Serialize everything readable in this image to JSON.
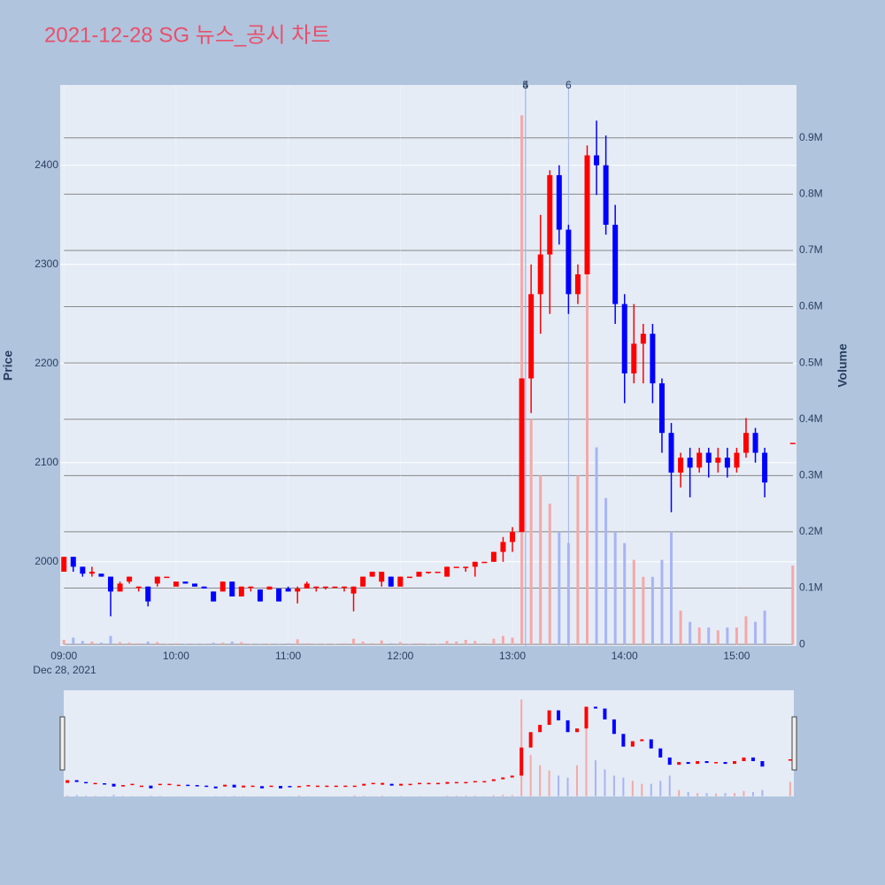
{
  "chart_data": {
    "type": "candlestick",
    "title": "2021-12-28 SG 뉴스_공시 차트",
    "ylabel": "Price",
    "y2label": "Volume",
    "date_label": "Dec 28, 2021",
    "increasing_color": "#ff0000",
    "decreasing_color": "#0000ff",
    "volume_increasing_color": "#f4a8a8",
    "volume_decreasing_color": "#a8b4f4",
    "xlim": [
      "08:58",
      "15:32"
    ],
    "xticks": [
      "09:00",
      "10:00",
      "11:00",
      "12:00",
      "13:00",
      "14:00",
      "15:00"
    ],
    "ylim": [
      1915,
      2481
    ],
    "yticks": [
      2000,
      2100,
      2200,
      2300,
      2400
    ],
    "y2lim": [
      -3000,
      994000
    ],
    "y2ticks": [
      0,
      {
        "value": 100000,
        "label": "0.1M"
      },
      {
        "value": 200000,
        "label": "0.2M"
      },
      {
        "value": 300000,
        "label": "0.3M"
      },
      {
        "value": 400000,
        "label": "0.4M"
      },
      {
        "value": 500000,
        "label": "0.5M"
      },
      {
        "value": 600000,
        "label": "0.6M"
      },
      {
        "value": 700000,
        "label": "0.7M"
      },
      {
        "value": 800000,
        "label": "0.8M"
      },
      {
        "value": 900000,
        "label": "0.9M"
      }
    ],
    "annotations": [
      {
        "x": "13:07",
        "label": "4"
      },
      {
        "x": "13:07",
        "label": "5"
      },
      {
        "x": "13:30",
        "label": "6"
      }
    ],
    "x": [
      "09:00",
      "09:05",
      "09:10",
      "09:15",
      "09:20",
      "09:25",
      "09:30",
      "09:35",
      "09:40",
      "09:45",
      "09:50",
      "09:55",
      "10:00",
      "10:05",
      "10:10",
      "10:15",
      "10:20",
      "10:25",
      "10:30",
      "10:35",
      "10:40",
      "10:45",
      "10:50",
      "10:55",
      "11:00",
      "11:05",
      "11:10",
      "11:15",
      "11:20",
      "11:25",
      "11:30",
      "11:35",
      "11:40",
      "11:45",
      "11:50",
      "11:55",
      "12:00",
      "12:05",
      "12:10",
      "12:15",
      "12:20",
      "12:25",
      "12:30",
      "12:35",
      "12:40",
      "12:45",
      "12:50",
      "12:55",
      "13:00",
      "13:05",
      "13:10",
      "13:15",
      "13:20",
      "13:25",
      "13:30",
      "13:35",
      "13:40",
      "13:45",
      "13:50",
      "13:55",
      "14:00",
      "14:05",
      "14:10",
      "14:15",
      "14:20",
      "14:25",
      "14:30",
      "14:35",
      "14:40",
      "14:45",
      "14:50",
      "14:55",
      "15:00",
      "15:05",
      "15:10",
      "15:15",
      "15:30"
    ],
    "open": [
      1990,
      2005,
      1995,
      1988,
      1988,
      1985,
      1970,
      1980,
      1975,
      1975,
      1978,
      1985,
      1975,
      1980,
      1978,
      1975,
      1970,
      1970,
      1980,
      1965,
      1975,
      1972,
      1972,
      1973,
      1973,
      1970,
      1973,
      1975,
      1975,
      1975,
      1975,
      1968,
      1975,
      1985,
      1980,
      1985,
      1975,
      1985,
      1985,
      1990,
      1990,
      1985,
      1995,
      1995,
      1995,
      2000,
      2000,
      2010,
      2020,
      2030,
      2185,
      2270,
      2310,
      2390,
      2335,
      2270,
      2290,
      2410,
      2400,
      2340,
      2260,
      2190,
      2220,
      2230,
      2180,
      2130,
      2090,
      2105,
      2095,
      2110,
      2100,
      2105,
      2095,
      2110,
      2130,
      2110,
      2120
    ],
    "high": [
      2005,
      2005,
      1995,
      1995,
      1988,
      1985,
      1980,
      1985,
      1975,
      1975,
      1985,
      1985,
      1980,
      1980,
      1978,
      1975,
      1970,
      1980,
      1980,
      1975,
      1975,
      1972,
      1975,
      1973,
      1975,
      1975,
      1980,
      1975,
      1975,
      1975,
      1975,
      1975,
      1985,
      1990,
      1990,
      1985,
      1985,
      1985,
      1990,
      1990,
      1990,
      1995,
      1995,
      1995,
      2000,
      2000,
      2010,
      2025,
      2035,
      2185,
      2300,
      2350,
      2395,
      2400,
      2340,
      2300,
      2420,
      2445,
      2430,
      2360,
      2270,
      2260,
      2240,
      2240,
      2185,
      2140,
      2110,
      2115,
      2115,
      2115,
      2115,
      2115,
      2115,
      2145,
      2135,
      2115,
      2120
    ],
    "low": [
      1990,
      1990,
      1985,
      1985,
      1985,
      1945,
      1970,
      1978,
      1970,
      1955,
      1975,
      1985,
      1975,
      1978,
      1975,
      1973,
      1960,
      1970,
      1965,
      1965,
      1970,
      1960,
      1972,
      1960,
      1970,
      1958,
      1973,
      1970,
      1972,
      1975,
      1970,
      1950,
      1975,
      1985,
      1975,
      1975,
      1975,
      1985,
      1985,
      1988,
      1990,
      1985,
      1995,
      1990,
      1985,
      2000,
      2000,
      2000,
      2010,
      2030,
      2150,
      2230,
      2250,
      2320,
      2250,
      2260,
      2290,
      2370,
      2330,
      2240,
      2160,
      2180,
      2180,
      2160,
      2110,
      2050,
      2075,
      2065,
      2090,
      2085,
      2090,
      2085,
      2090,
      2105,
      2100,
      2065,
      2120
    ],
    "close": [
      2005,
      1995,
      1988,
      1990,
      1985,
      1970,
      1978,
      1985,
      1975,
      1960,
      1985,
      1985,
      1980,
      1978,
      1975,
      1973,
      1960,
      1980,
      1965,
      1975,
      1975,
      1960,
      1975,
      1960,
      1970,
      1973,
      1978,
      1975,
      1975,
      1975,
      1975,
      1975,
      1985,
      1990,
      1990,
      1975,
      1985,
      1985,
      1990,
      1990,
      1990,
      1995,
      1995,
      1995,
      2000,
      2000,
      2010,
      2020,
      2030,
      2185,
      2270,
      2310,
      2390,
      2335,
      2270,
      2290,
      2410,
      2400,
      2340,
      2260,
      2190,
      2220,
      2230,
      2180,
      2130,
      2090,
      2105,
      2095,
      2110,
      2100,
      2105,
      2095,
      2110,
      2130,
      2110,
      2080,
      2120
    ],
    "volume": [
      8000,
      12000,
      6000,
      5000,
      3000,
      15000,
      4000,
      3000,
      2000,
      5000,
      4000,
      1000,
      2000,
      1000,
      1000,
      1000,
      3000,
      3000,
      5000,
      4000,
      1000,
      1000,
      1000,
      1000,
      2000,
      9000,
      2000,
      1000,
      1000,
      1000,
      2000,
      10000,
      5000,
      2000,
      7000,
      2000,
      4000,
      1000,
      2000,
      1000,
      1000,
      6000,
      5000,
      8000,
      6000,
      2000,
      10000,
      15000,
      12000,
      940000,
      400000,
      300000,
      250000,
      200000,
      180000,
      300000,
      860000,
      350000,
      260000,
      200000,
      180000,
      150000,
      120000,
      120000,
      150000,
      200000,
      60000,
      40000,
      30000,
      30000,
      25000,
      30000,
      30000,
      50000,
      40000,
      60000,
      140000
    ]
  }
}
